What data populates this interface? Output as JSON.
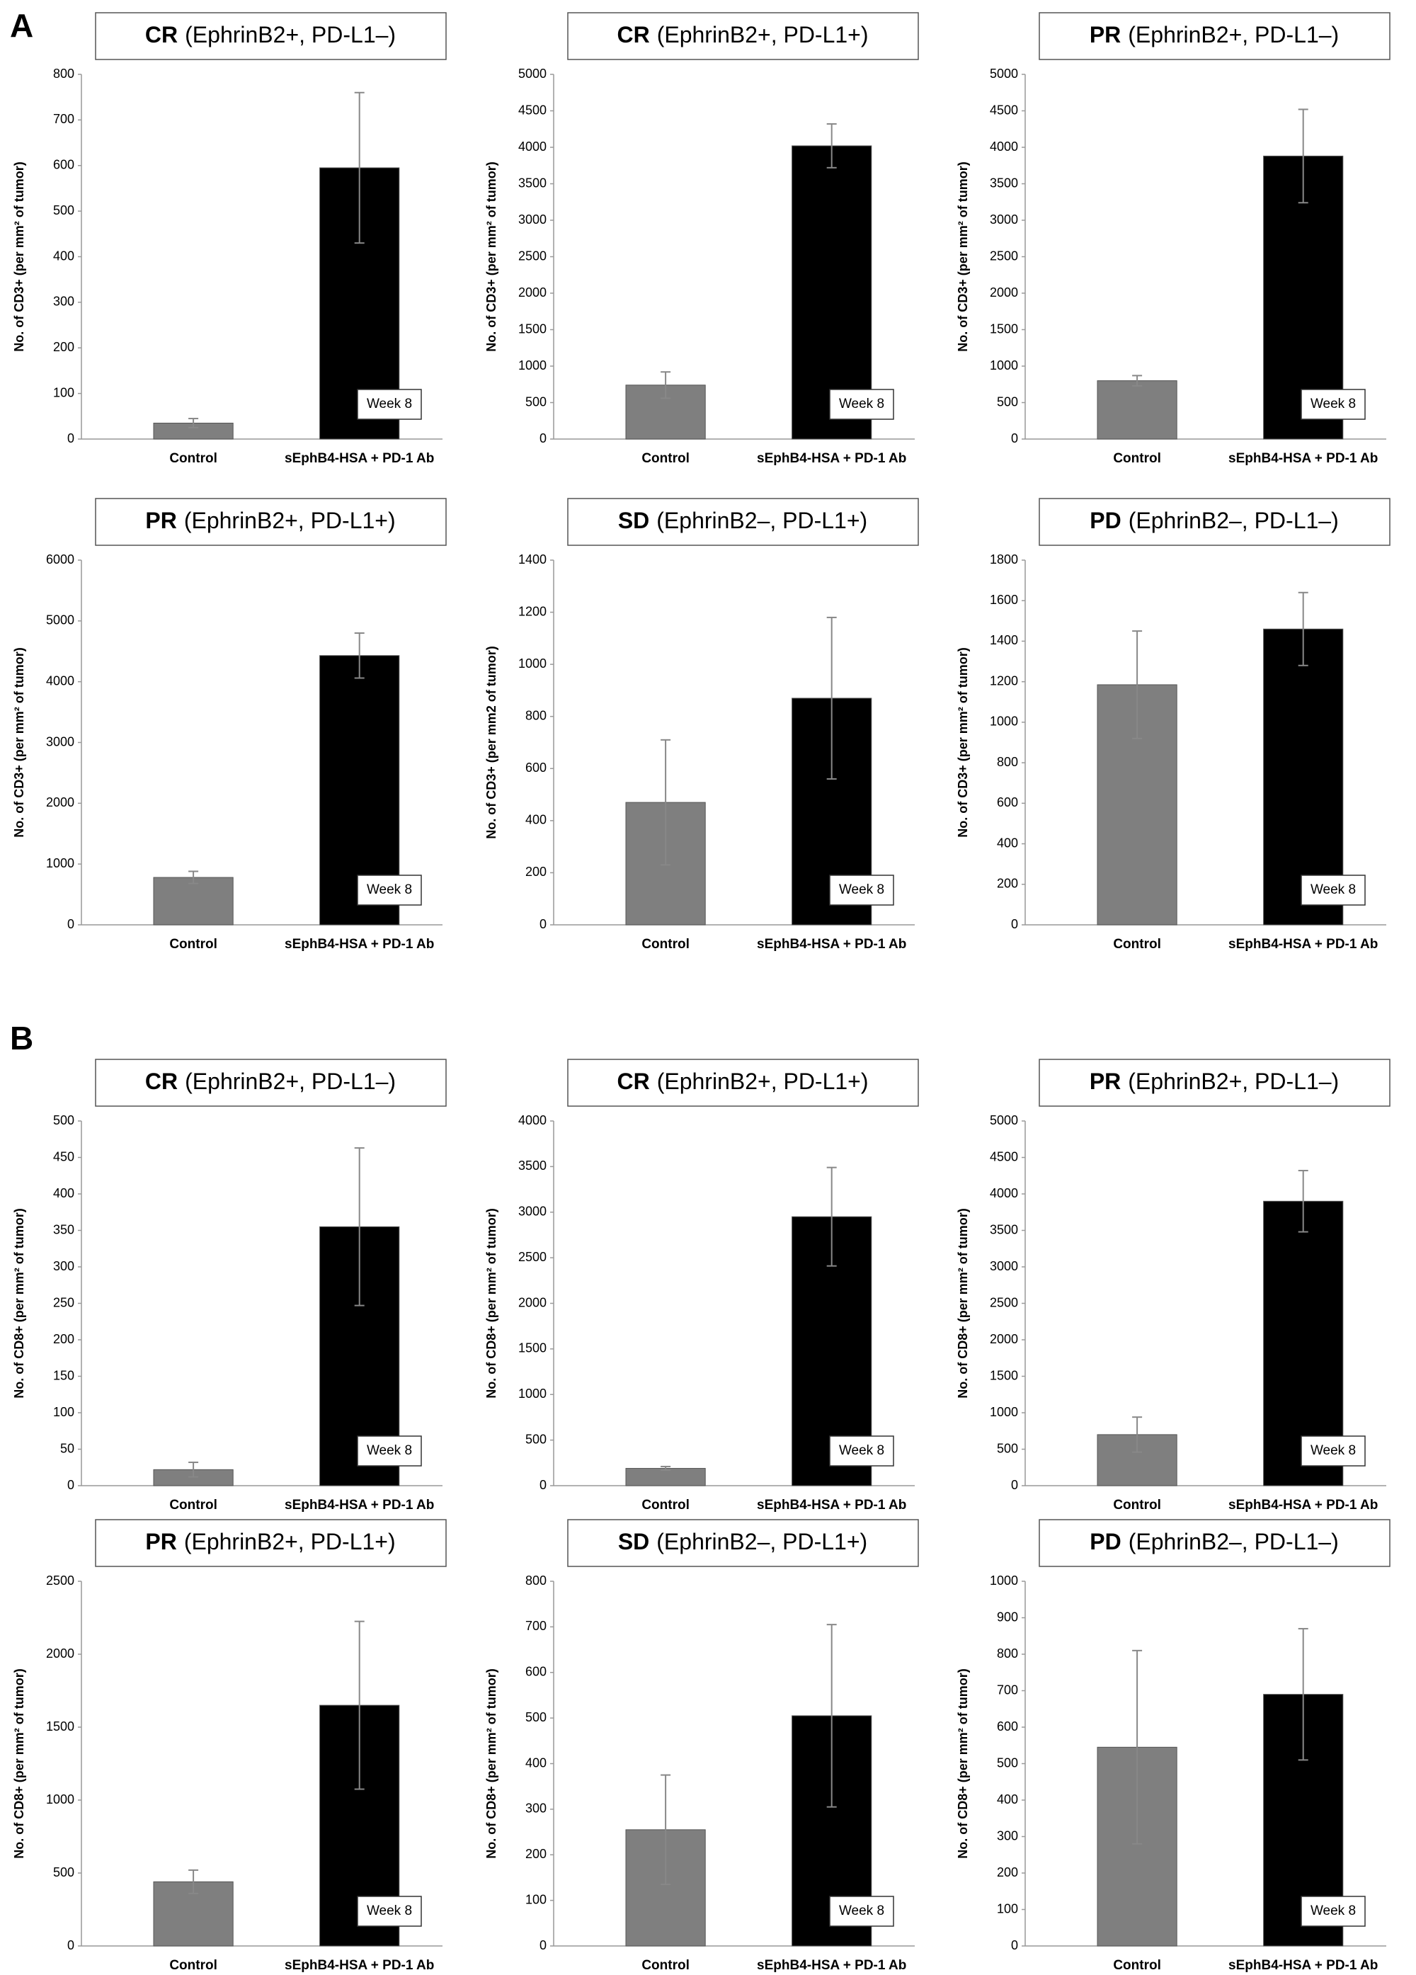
{
  "panel_labels": [
    "A",
    "B"
  ],
  "chart_data": [
    {
      "type": "bar",
      "title_prefix": "CR",
      "title": "(EphrinB2+, PD-L1–)",
      "ylabel": "No. of CD3+ (per mm² of tumor)",
      "categories": [
        "Control",
        "sEphB4-HSA + PD-1 Ab"
      ],
      "values": [
        35,
        595
      ],
      "errors": [
        10,
        165
      ],
      "colors": [
        "#7f7f7f",
        "#000000"
      ],
      "annotation": "Week 8",
      "ylim": [
        0,
        800
      ],
      "yticks": [
        0,
        100,
        200,
        300,
        400,
        500,
        600,
        700,
        800
      ]
    },
    {
      "type": "bar",
      "title_prefix": "CR",
      "title": "(EphrinB2+, PD-L1+)",
      "ylabel": "No. of CD3+ (per mm² of tumor)",
      "categories": [
        "Control",
        "sEphB4-HSA + PD-1 Ab"
      ],
      "values": [
        740,
        4020
      ],
      "errors": [
        180,
        300
      ],
      "colors": [
        "#7f7f7f",
        "#000000"
      ],
      "annotation": "Week 8",
      "ylim": [
        0,
        5000
      ],
      "yticks": [
        0,
        500,
        1000,
        1500,
        2000,
        2500,
        3000,
        3500,
        4000,
        4500,
        5000
      ]
    },
    {
      "type": "bar",
      "title_prefix": "PR",
      "title": "(EphrinB2+, PD-L1–)",
      "ylabel": "No. of CD3+ (per mm² of tumor)",
      "categories": [
        "Control",
        "sEphB4-HSA + PD-1 Ab"
      ],
      "values": [
        800,
        3880
      ],
      "errors": [
        70,
        640
      ],
      "colors": [
        "#7f7f7f",
        "#000000"
      ],
      "annotation": "Week 8",
      "ylim": [
        0,
        5000
      ],
      "yticks": [
        0,
        500,
        1000,
        1500,
        2000,
        2500,
        3000,
        3500,
        4000,
        4500,
        5000
      ]
    },
    {
      "type": "bar",
      "title_prefix": "PR",
      "title": "(EphrinB2+, PD-L1+)",
      "ylabel": "No. of CD3+ (per mm² of tumor)",
      "categories": [
        "Control",
        "sEphB4-HSA + PD-1 Ab"
      ],
      "values": [
        780,
        4430
      ],
      "errors": [
        100,
        370
      ],
      "colors": [
        "#7f7f7f",
        "#000000"
      ],
      "annotation": "Week 8",
      "ylim": [
        0,
        6000
      ],
      "yticks": [
        0,
        1000,
        2000,
        3000,
        4000,
        5000,
        6000
      ]
    },
    {
      "type": "bar",
      "title_prefix": "SD",
      "title": "(EphrinB2–, PD-L1+)",
      "ylabel": "No. of CD3+ (per mm2 of tumor)",
      "categories": [
        "Control",
        "sEphB4-HSA + PD-1 Ab"
      ],
      "values": [
        470,
        870
      ],
      "errors": [
        240,
        310
      ],
      "colors": [
        "#7f7f7f",
        "#000000"
      ],
      "annotation": "Week 8",
      "ylim": [
        0,
        1400
      ],
      "yticks": [
        0,
        200,
        400,
        600,
        800,
        1000,
        1200,
        1400
      ]
    },
    {
      "type": "bar",
      "title_prefix": "PD",
      "title": "(EphrinB2–, PD-L1–)",
      "ylabel": "No. of CD3+ (per mm² of tumor)",
      "categories": [
        "Control",
        "sEphB4-HSA + PD-1 Ab"
      ],
      "values": [
        1185,
        1460
      ],
      "errors": [
        265,
        180
      ],
      "colors": [
        "#7f7f7f",
        "#000000"
      ],
      "annotation": "Week 8",
      "ylim": [
        0,
        1800
      ],
      "yticks": [
        0,
        200,
        400,
        600,
        800,
        1000,
        1200,
        1400,
        1600,
        1800
      ]
    },
    {
      "type": "bar",
      "title_prefix": "CR",
      "title": "(EphrinB2+, PD-L1–)",
      "ylabel": "No. of CD8+ (per mm² of tumor)",
      "categories": [
        "Control",
        "sEphB4-HSA + PD-1 Ab"
      ],
      "values": [
        22,
        355
      ],
      "errors": [
        10,
        108
      ],
      "colors": [
        "#7f7f7f",
        "#000000"
      ],
      "annotation": "Week 8",
      "ylim": [
        0,
        500
      ],
      "yticks": [
        0,
        50,
        100,
        150,
        200,
        250,
        300,
        350,
        400,
        450,
        500
      ]
    },
    {
      "type": "bar",
      "title_prefix": "CR",
      "title": "(EphrinB2+, PD-L1+)",
      "ylabel": "No. of CD8+ (per mm² of tumor)",
      "categories": [
        "Control",
        "sEphB4-HSA + PD-1 Ab"
      ],
      "values": [
        190,
        2950
      ],
      "errors": [
        20,
        540
      ],
      "colors": [
        "#7f7f7f",
        "#000000"
      ],
      "annotation": "Week 8",
      "ylim": [
        0,
        4000
      ],
      "yticks": [
        0,
        500,
        1000,
        1500,
        2000,
        2500,
        3000,
        3500,
        4000
      ]
    },
    {
      "type": "bar",
      "title_prefix": "PR",
      "title": "(EphrinB2+, PD-L1–)",
      "ylabel": "No. of CD8+ (per mm² of tumor)",
      "categories": [
        "Control",
        "sEphB4-HSA + PD-1 Ab"
      ],
      "values": [
        700,
        3900
      ],
      "errors": [
        240,
        420
      ],
      "colors": [
        "#7f7f7f",
        "#000000"
      ],
      "annotation": "Week 8",
      "ylim": [
        0,
        5000
      ],
      "yticks": [
        0,
        500,
        1000,
        1500,
        2000,
        2500,
        3000,
        3500,
        4000,
        4500,
        5000
      ]
    },
    {
      "type": "bar",
      "title_prefix": "PR",
      "title": "(EphrinB2+, PD-L1+)",
      "ylabel": "No. of CD8+ (per mm² of tumor)",
      "categories": [
        "Control",
        "sEphB4-HSA + PD-1 Ab"
      ],
      "values": [
        440,
        1650
      ],
      "errors": [
        80,
        575
      ],
      "colors": [
        "#7f7f7f",
        "#000000"
      ],
      "annotation": "Week 8",
      "ylim": [
        0,
        2500
      ],
      "yticks": [
        0,
        500,
        1000,
        1500,
        2000,
        2500
      ]
    },
    {
      "type": "bar",
      "title_prefix": "SD",
      "title": "(EphrinB2–, PD-L1+)",
      "ylabel": "No. of CD8+ (per mm² of tumor)",
      "categories": [
        "Control",
        "sEphB4-HSA + PD-1 Ab"
      ],
      "values": [
        255,
        505
      ],
      "errors": [
        120,
        200
      ],
      "colors": [
        "#7f7f7f",
        "#000000"
      ],
      "annotation": "Week 8",
      "ylim": [
        0,
        800
      ],
      "yticks": [
        0,
        100,
        200,
        300,
        400,
        500,
        600,
        700,
        800
      ]
    },
    {
      "type": "bar",
      "title_prefix": "PD",
      "title": "(EphrinB2–, PD-L1–)",
      "ylabel": "No. of CD8+ (per mm² of tumor)",
      "categories": [
        "Control",
        "sEphB4-HSA + PD-1 Ab"
      ],
      "values": [
        545,
        690
      ],
      "errors": [
        265,
        180
      ],
      "colors": [
        "#7f7f7f",
        "#000000"
      ],
      "annotation": "Week 8",
      "ylim": [
        0,
        1000
      ],
      "yticks": [
        0,
        100,
        200,
        300,
        400,
        500,
        600,
        700,
        800,
        900,
        1000
      ]
    }
  ]
}
